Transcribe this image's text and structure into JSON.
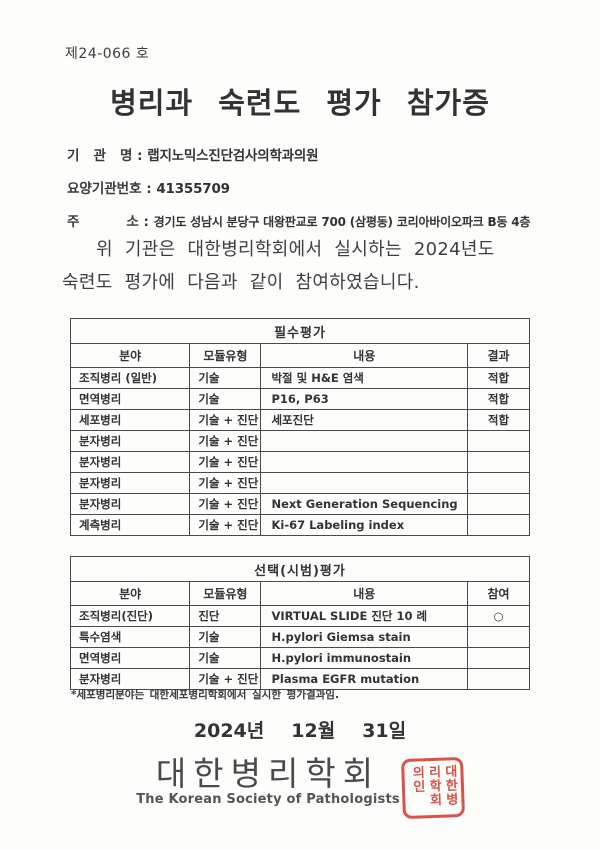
{
  "doc": {
    "number": "제24-066 호",
    "title": "병리과 숙련도 평가 참가증",
    "fields": [
      {
        "label": "기   관   명 : ",
        "value": "랩지노믹스진단검사의학과의원"
      },
      {
        "label": "요양기관번호 : ",
        "value": "41355709"
      },
      {
        "label": "주          소 : ",
        "value": "경기도 성남시 분당구 대왕판교로 700 (삼평동) 코리아바이오파크 B동 4층"
      }
    ],
    "body_line1": "위 기관은 대한병리학회에서 실시하는 2024년도",
    "body_line2": "숙련도 평가에 다음과 같이 참여하였습니다.",
    "footnote": "*세포병리분야는 대한세포병리학회에서 실시한 평가결과임."
  },
  "required_table": {
    "title": "필수평가",
    "headers": [
      "분야",
      "모듈유형",
      "내용",
      "결과"
    ],
    "rows": [
      [
        "조직병리 (일반)",
        "기술",
        "박절 및 H&E 염색",
        "적합"
      ],
      [
        "면역병리",
        "기술",
        "P16, P63",
        "적합"
      ],
      [
        "세포병리",
        "기술 + 진단",
        "세포진단",
        "적합"
      ],
      [
        "분자병리",
        "기술 + 진단",
        "",
        ""
      ],
      [
        "분자병리",
        "기술 + 진단",
        "",
        ""
      ],
      [
        "분자병리",
        "기술 + 진단",
        "",
        ""
      ],
      [
        "분자병리",
        "기술 + 진단",
        "Next Generation Sequencing",
        ""
      ],
      [
        "계측병리",
        "기술 + 진단",
        "Ki-67 Labeling index",
        ""
      ]
    ]
  },
  "optional_table": {
    "title": "선택(시범)평가",
    "headers": [
      "분야",
      "모듈유형",
      "내용",
      "참여"
    ],
    "rows": [
      [
        "조직병리(진단)",
        "진단",
        "VIRTUAL SLIDE 진단 10 례",
        "○"
      ],
      [
        "특수염색",
        "기술",
        "H.pylori Giemsa stain",
        ""
      ],
      [
        "면역병리",
        "기술",
        "H.pylori immunostain",
        ""
      ],
      [
        "분자병리",
        "기술 + 진단",
        "Plasma EGFR mutation",
        ""
      ]
    ]
  },
  "date": {
    "parts": [
      "2024년",
      "12월",
      "31일"
    ]
  },
  "org": {
    "korean": "대한병리학회",
    "english": "The Korean Society of Pathologists",
    "seal_text": "대한병리학회의인"
  },
  "colors": {
    "seal_red": "#d63c30",
    "text": "#3a3a3a"
  }
}
